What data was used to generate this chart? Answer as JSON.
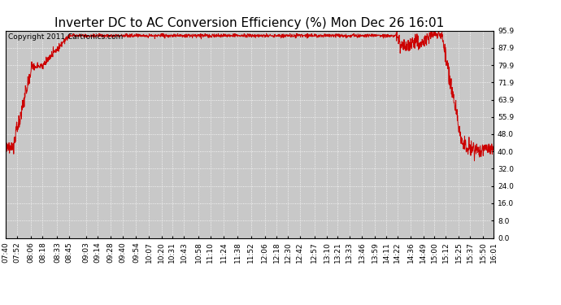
{
  "title": "Inverter DC to AC Conversion Efficiency (%) Mon Dec 26 16:01",
  "copyright": "Copyright 2011 Cartronics.com",
  "line_color": "#cc0000",
  "bg_color": "#ffffff",
  "plot_bg_color": "#c8c8c8",
  "grid_color": "#ffffff",
  "yticks": [
    0.0,
    8.0,
    16.0,
    24.0,
    32.0,
    40.0,
    48.0,
    55.9,
    63.9,
    71.9,
    79.9,
    87.9,
    95.9
  ],
  "ylim": [
    0.0,
    95.9
  ],
  "xtick_labels": [
    "07:40",
    "07:52",
    "08:06",
    "08:18",
    "08:33",
    "08:45",
    "09:03",
    "09:14",
    "09:28",
    "09:40",
    "09:54",
    "10:07",
    "10:20",
    "10:31",
    "10:43",
    "10:58",
    "11:10",
    "11:24",
    "11:38",
    "11:52",
    "12:06",
    "12:18",
    "12:30",
    "12:42",
    "12:57",
    "13:10",
    "13:21",
    "13:33",
    "13:46",
    "13:59",
    "14:11",
    "14:22",
    "14:36",
    "14:49",
    "15:00",
    "15:12",
    "15:25",
    "15:37",
    "15:50",
    "16:01"
  ],
  "title_fontsize": 11,
  "tick_fontsize": 6.5,
  "copyright_fontsize": 6.5,
  "figsize": [
    6.9,
    3.75
  ],
  "dpi": 100
}
